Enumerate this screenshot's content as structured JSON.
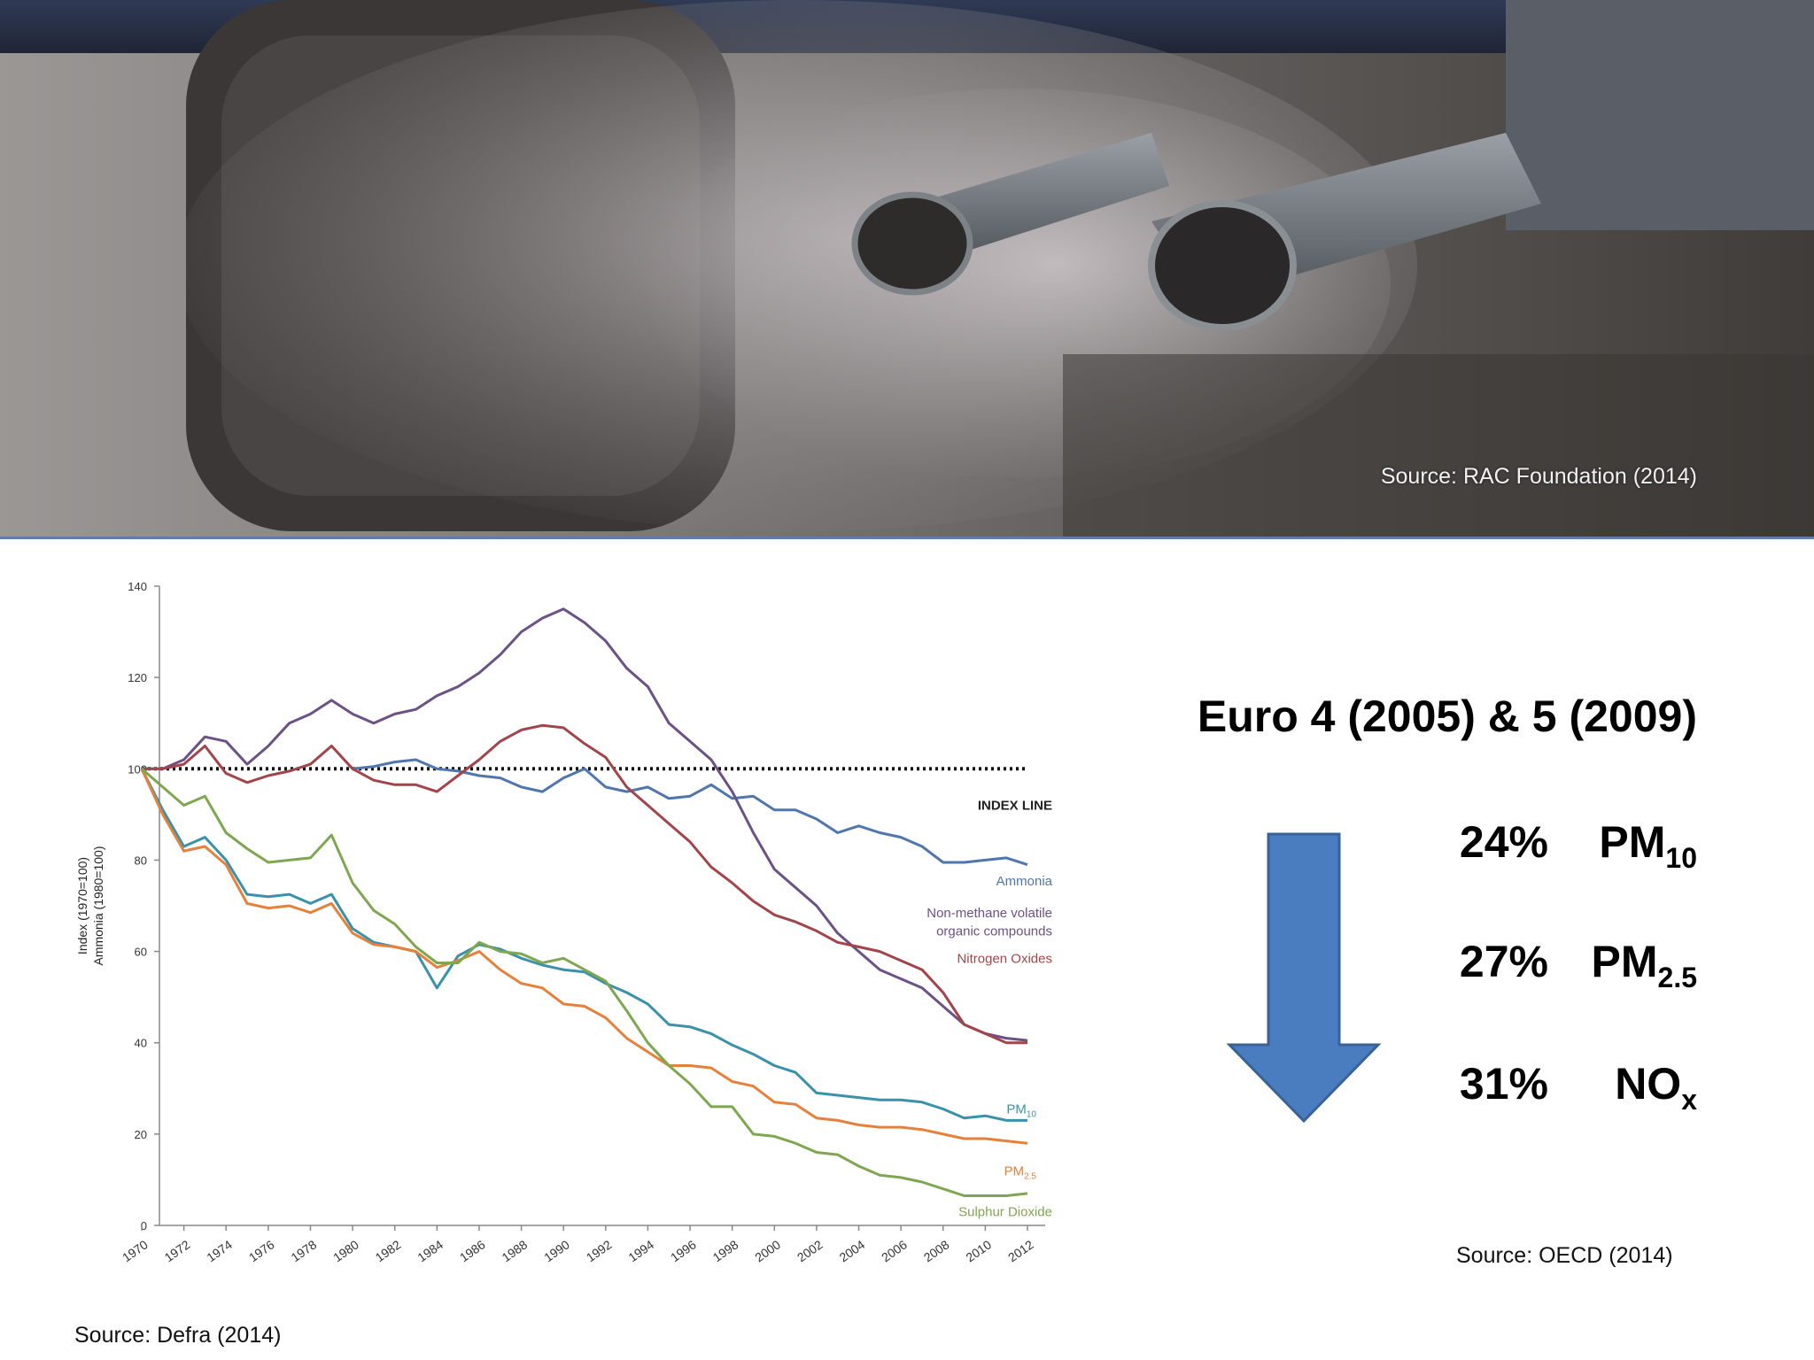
{
  "photo": {
    "source": "Source: RAC Foundation (2014)"
  },
  "chart_source": "Source: Defra (2014)",
  "right_panel": {
    "headline": "Euro 4 (2005) & 5 (2009)",
    "stats": [
      {
        "percent": "24%",
        "name": "PM",
        "sub": "10"
      },
      {
        "percent": "27%",
        "name": "PM",
        "sub": "2.5"
      },
      {
        "percent": "31%",
        "name": "NO",
        "sub": "x"
      }
    ],
    "source": "Source: OECD (2014)",
    "arrow_color": "#4a7cc0"
  },
  "chart_data": {
    "type": "line",
    "ylabel_line1": "Index (1970=100)",
    "ylabel_line2": "Ammonia (1980=100)",
    "ylim": [
      0,
      140
    ],
    "yticks": [
      0,
      20,
      40,
      60,
      80,
      100,
      120,
      140
    ],
    "xlim": [
      1970,
      2012
    ],
    "xticks": [
      "1970",
      "1972",
      "1974",
      "1976",
      "1978",
      "1980",
      "1982",
      "1984",
      "1986",
      "1988",
      "1990",
      "1992",
      "1994",
      "1996",
      "1998",
      "2000",
      "2002",
      "2004",
      "2006",
      "2008",
      "2010",
      "2012"
    ],
    "index_line": {
      "label": "INDEX LINE",
      "value": 100
    },
    "series": [
      {
        "key": "ammonia",
        "label_lines": [
          "Ammonia"
        ],
        "color": "#4f76ad",
        "x": [
          1980,
          1981,
          1982,
          1983,
          1984,
          1985,
          1986,
          1987,
          1988,
          1989,
          1990,
          1991,
          1992,
          1993,
          1994,
          1995,
          1996,
          1997,
          1998,
          1999,
          2000,
          2001,
          2002,
          2003,
          2004,
          2005,
          2006,
          2007,
          2008,
          2009,
          2010,
          2011,
          2012
        ],
        "y": [
          100,
          100.5,
          101.5,
          102,
          100,
          99.5,
          98.5,
          98,
          96,
          95,
          98,
          100,
          96,
          95,
          96,
          93.5,
          94,
          96.5,
          93.5,
          94,
          91,
          91,
          89,
          86,
          87.5,
          86,
          85,
          83,
          79.5,
          79.5,
          80,
          80.5,
          79
        ]
      },
      {
        "key": "nmvoc",
        "label_lines": [
          "Non-methane volatile",
          "organic compounds"
        ],
        "color": "#6b5186",
        "x": [
          1970,
          1971,
          1972,
          1973,
          1974,
          1975,
          1976,
          1977,
          1978,
          1979,
          1980,
          1981,
          1982,
          1983,
          1984,
          1985,
          1986,
          1987,
          1988,
          1989,
          1990,
          1991,
          1992,
          1993,
          1994,
          1995,
          1996,
          1997,
          1998,
          1999,
          2000,
          2001,
          2002,
          2003,
          2004,
          2005,
          2006,
          2007,
          2008,
          2009,
          2010,
          2011,
          2012
        ],
        "y": [
          100,
          100,
          102,
          107,
          106,
          101,
          105,
          110,
          112,
          115,
          112,
          110,
          112,
          113,
          116,
          118,
          121,
          125,
          130,
          133,
          135,
          132,
          128,
          122,
          118,
          110,
          106,
          102,
          95,
          86,
          78,
          74,
          70,
          64,
          60,
          56,
          54,
          52,
          48,
          44,
          42,
          41,
          40.5
        ]
      },
      {
        "key": "nox",
        "label_lines": [
          "Nitrogen Oxides"
        ],
        "color": "#a1454a",
        "x": [
          1970,
          1971,
          1972,
          1973,
          1974,
          1975,
          1976,
          1977,
          1978,
          1979,
          1980,
          1981,
          1982,
          1983,
          1984,
          1985,
          1986,
          1987,
          1988,
          1989,
          1990,
          1991,
          1992,
          1993,
          1994,
          1995,
          1996,
          1997,
          1998,
          1999,
          2000,
          2001,
          2002,
          2003,
          2004,
          2005,
          2006,
          2007,
          2008,
          2009,
          2010,
          2011,
          2012
        ],
        "y": [
          100,
          100,
          101,
          105,
          99,
          97,
          98.5,
          99.5,
          101,
          105,
          100,
          97.5,
          96.5,
          96.5,
          95,
          98.5,
          102,
          106,
          108.5,
          109.5,
          109,
          105.5,
          102.5,
          96,
          92,
          88,
          84,
          78.5,
          75,
          71,
          68,
          66.5,
          64.5,
          62,
          61,
          60,
          58,
          56,
          51,
          44,
          42,
          40,
          40
        ]
      },
      {
        "key": "pm10",
        "label_lines": [
          "PM"
        ],
        "label_sub": "10",
        "color": "#3a91aa",
        "x": [
          1970,
          1971,
          1972,
          1973,
          1974,
          1975,
          1976,
          1977,
          1978,
          1979,
          1980,
          1981,
          1982,
          1983,
          1984,
          1985,
          1986,
          1987,
          1988,
          1989,
          1990,
          1991,
          1992,
          1993,
          1994,
          1995,
          1996,
          1997,
          1998,
          1999,
          2000,
          2001,
          2002,
          2003,
          2004,
          2005,
          2006,
          2007,
          2008,
          2009,
          2010,
          2011,
          2012
        ],
        "y": [
          100,
          91,
          83,
          85,
          80,
          72.5,
          72,
          72.5,
          70.5,
          72.5,
          65,
          62,
          61,
          60,
          52,
          59,
          61.5,
          60.5,
          58.5,
          57,
          56,
          55.5,
          53,
          51,
          48.5,
          44,
          43.5,
          42,
          39.5,
          37.5,
          35,
          33.5,
          29,
          28.5,
          28,
          27.5,
          27.5,
          27,
          25.5,
          23.5,
          24,
          23,
          23
        ]
      },
      {
        "key": "pm25",
        "label_lines": [
          "PM"
        ],
        "label_sub": "2.5",
        "color": "#e5813b",
        "x": [
          1970,
          1971,
          1972,
          1973,
          1974,
          1975,
          1976,
          1977,
          1978,
          1979,
          1980,
          1981,
          1982,
          1983,
          1984,
          1985,
          1986,
          1987,
          1988,
          1989,
          1990,
          1991,
          1992,
          1993,
          1994,
          1995,
          1996,
          1997,
          1998,
          1999,
          2000,
          2001,
          2002,
          2003,
          2004,
          2005,
          2006,
          2007,
          2008,
          2009,
          2010,
          2011,
          2012
        ],
        "y": [
          100,
          90,
          82,
          83,
          79,
          70.5,
          69.5,
          70,
          68.5,
          70.5,
          64,
          61.5,
          61,
          60,
          56.5,
          58,
          60,
          56,
          53,
          52,
          48.5,
          48,
          45.5,
          41,
          38,
          35,
          35,
          34.5,
          31.5,
          30.5,
          27,
          26.5,
          23.5,
          23,
          22,
          21.5,
          21.5,
          21,
          20,
          19,
          19,
          18.5,
          18
        ]
      },
      {
        "key": "so2",
        "label_lines": [
          "Sulphur Dioxide"
        ],
        "color": "#7fa650",
        "x": [
          1970,
          1971,
          1972,
          1973,
          1974,
          1975,
          1976,
          1977,
          1978,
          1979,
          1980,
          1981,
          1982,
          1983,
          1984,
          1985,
          1986,
          1987,
          1988,
          1989,
          1990,
          1991,
          1992,
          1993,
          1994,
          1995,
          1996,
          1997,
          1998,
          1999,
          2000,
          2001,
          2002,
          2003,
          2004,
          2005,
          2006,
          2007,
          2008,
          2009,
          2010,
          2011,
          2012
        ],
        "y": [
          100,
          96,
          92,
          94,
          86,
          82.5,
          79.5,
          80,
          80.5,
          85.5,
          75,
          69,
          66,
          61,
          57.5,
          57.5,
          62,
          60,
          59.5,
          57.5,
          58.5,
          56,
          53.5,
          47,
          40,
          35,
          31,
          26,
          26,
          20,
          19.5,
          18,
          16,
          15.5,
          13,
          11,
          10.5,
          9.5,
          8,
          6.5,
          6.5,
          6.5,
          7
        ]
      }
    ]
  }
}
